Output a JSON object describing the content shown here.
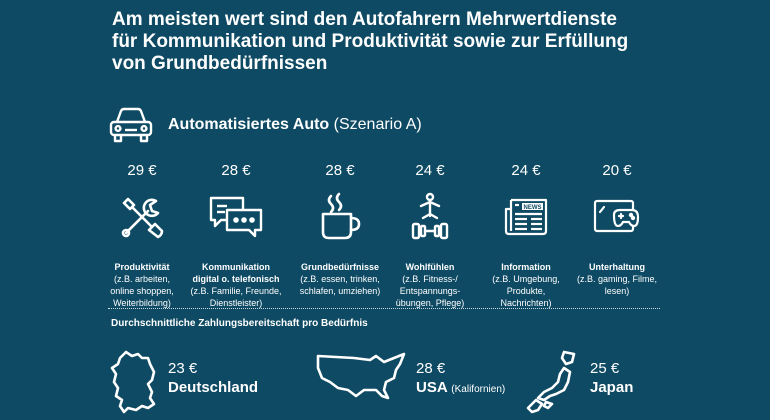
{
  "title": {
    "line1": "Am meisten wert sind den Autofahrern Mehrwertdienste",
    "line2": "für Kommunikation und Produktivität sowie zur Erfüllung",
    "line3": "von Grundbedürfnissen"
  },
  "scenario": {
    "icon": "car-icon",
    "name": "Automatisiertes Auto",
    "detail": "(Szenario A)"
  },
  "needs": [
    {
      "price": "29 €",
      "icon": "tools-icon",
      "label": "Produktivität",
      "desc": [
        "(z.B. arbeiten,",
        "online shoppen,",
        "Weiterbildung)"
      ]
    },
    {
      "price": "28 €",
      "icon": "chat-icon",
      "label": "Kommunikation",
      "label2": "digital o. telefonisch",
      "desc": [
        "(z.B. Familie, Freunde,",
        "Dienstleister)"
      ]
    },
    {
      "price": "28 €",
      "icon": "coffee-cup-icon",
      "label": "Grundbedürfnisse",
      "desc": [
        "(z.B. essen, trinken,",
        "schlafen, umziehen)"
      ]
    },
    {
      "price": "24 €",
      "icon": "fitness-icon",
      "label": "Wohlfühlen",
      "desc": [
        "(z.B. Fitness-/",
        "Entspannungs-",
        "übungen, Pflege)"
      ]
    },
    {
      "price": "24 €",
      "icon": "newspaper-icon",
      "label": "Information",
      "desc": [
        "(z.B. Umgebung,",
        "Produkte,",
        "Nachrichten)"
      ]
    },
    {
      "price": "20 €",
      "icon": "gaming-icon",
      "label": "Unterhaltung",
      "desc": [
        "(z.B. gaming, Filme,",
        "lesen)"
      ]
    }
  ],
  "newspaper_text": "NEWS",
  "subheading": "Durchschnittliche Zahlungsbereitschaft pro Bedürfnis",
  "countries": [
    {
      "price": "23 €",
      "name": "Deutschland",
      "note": "",
      "icon": "germany-map-icon"
    },
    {
      "price": "28 €",
      "name": "USA",
      "note": "(Kalifornien)",
      "icon": "usa-map-icon"
    },
    {
      "price": "25 €",
      "name": "Japan",
      "note": "",
      "icon": "japan-map-icon"
    }
  ],
  "colors": {
    "background": "#0e4a63",
    "foreground": "#ffffff"
  }
}
